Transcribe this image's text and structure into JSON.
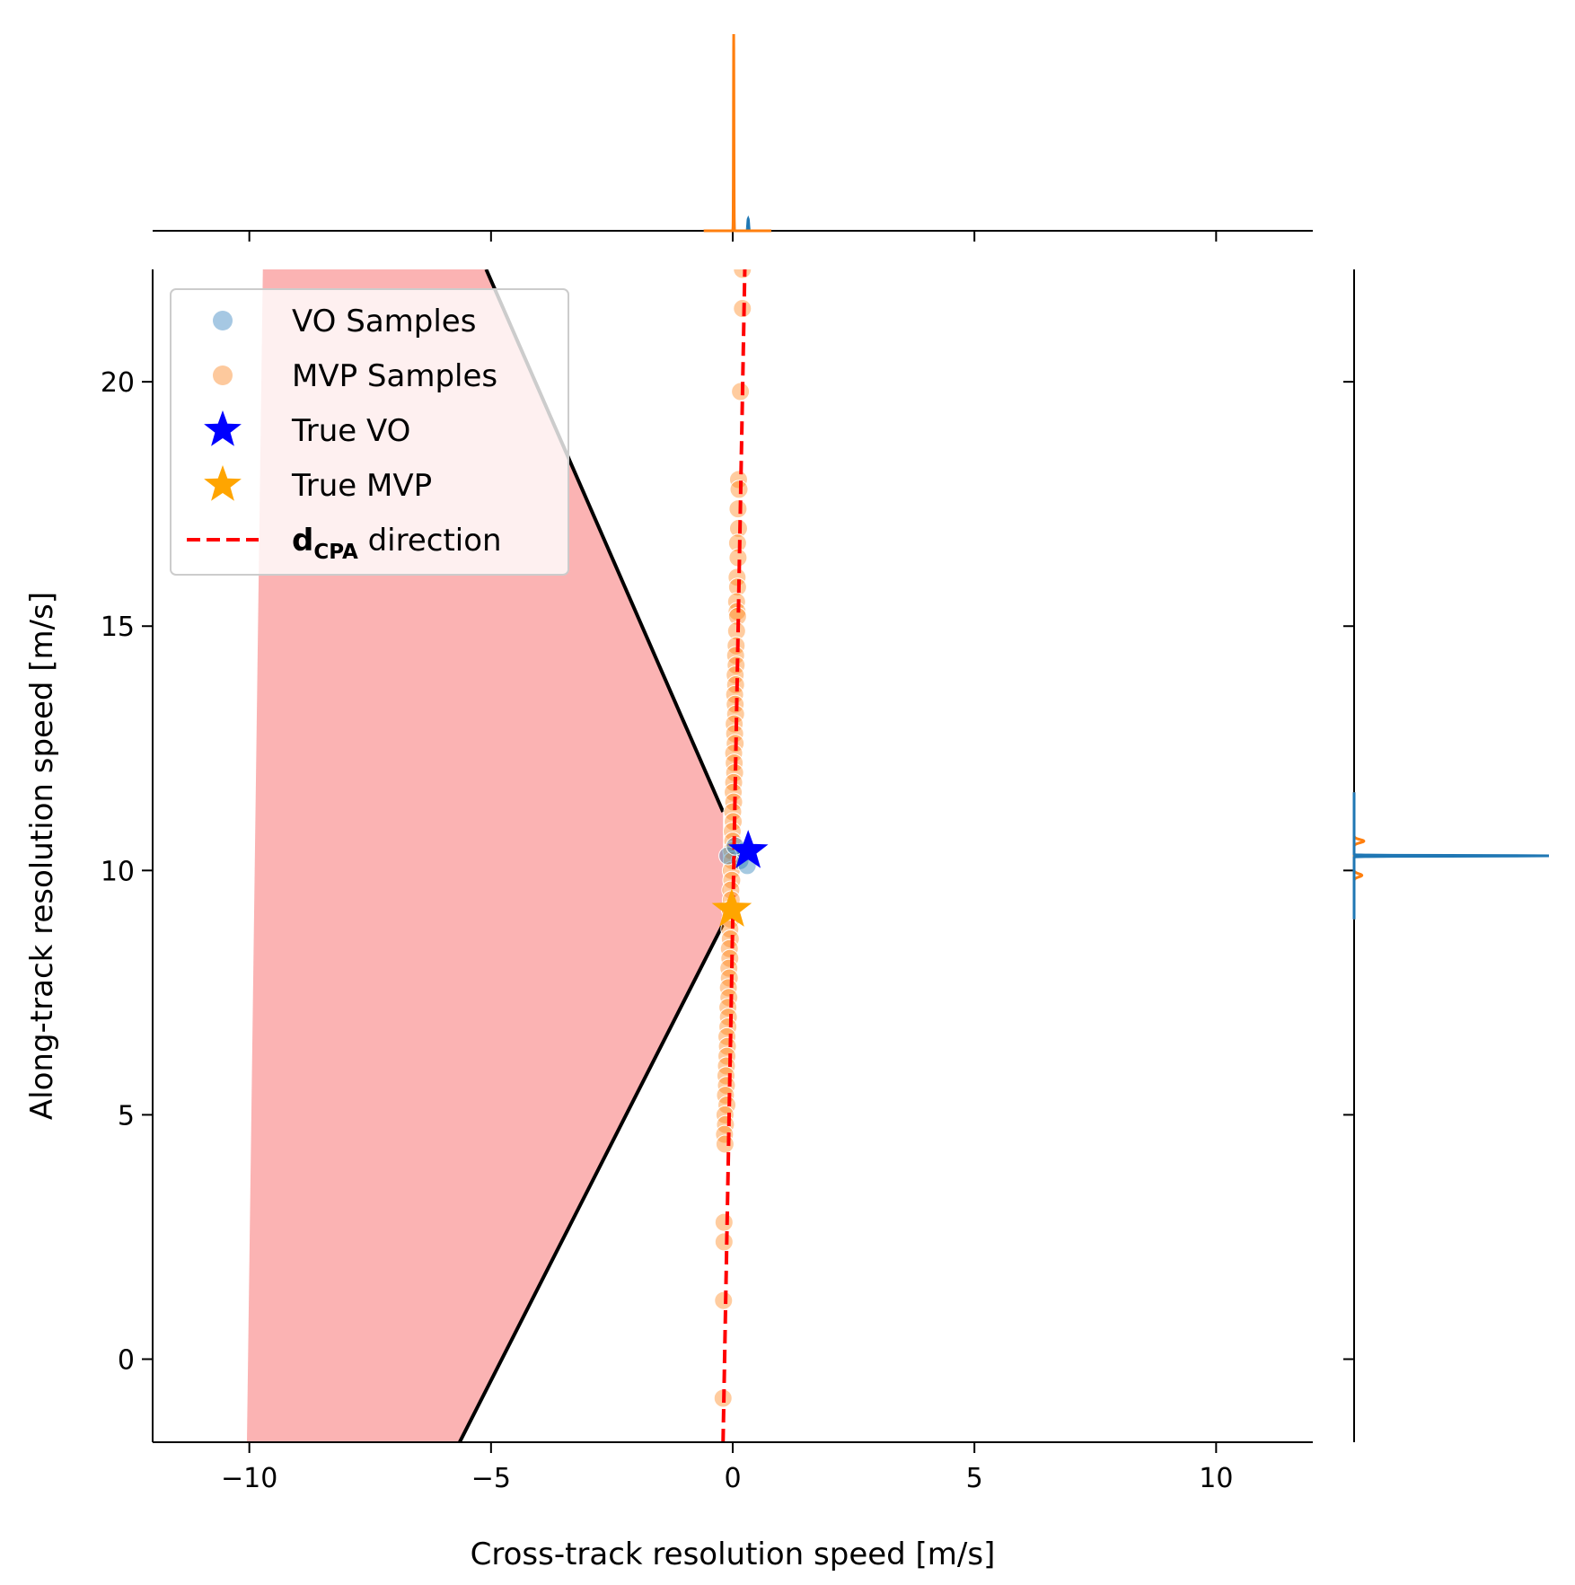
{
  "chart_data": {
    "type": "scatter",
    "xlabel": "Cross-track resolution speed [m/s]",
    "ylabel": "Along-track resolution speed [m/s]",
    "xlim": [
      -12,
      12
    ],
    "ylim": [
      -1.7,
      22.3
    ],
    "xticks": [
      -10,
      -5,
      0,
      5,
      10
    ],
    "yticks": [
      0,
      5,
      10,
      15,
      20
    ],
    "xtick_labels": [
      "−10",
      "−5",
      "0",
      "5",
      "10"
    ],
    "ytick_labels": [
      "0",
      "5",
      "10",
      "15",
      "20"
    ],
    "grid": false,
    "legend": {
      "placement": "top-left",
      "entries": [
        {
          "label": "VO Samples",
          "marker": "circle",
          "color": "#a6c8e3"
        },
        {
          "label": "MVP Samples",
          "marker": "circle",
          "color": "#fdc99d"
        },
        {
          "label": "True VO",
          "marker": "star",
          "color": "#0000ff"
        },
        {
          "label": "True MVP",
          "marker": "star",
          "color": "#ffa500"
        },
        {
          "label_bold": "d",
          "label_sub": "CPA",
          "label": " direction",
          "marker": "dashed-line",
          "color": "#ff0000"
        }
      ]
    },
    "velocity_obstacle_region": {
      "fill_color": "#fbb3b3",
      "edge_color": "#000000",
      "polygon": [
        [
          -10.05,
          -1.7
        ],
        [
          -9.72,
          22.3
        ],
        [
          -5.1,
          22.3
        ],
        [
          -0.2,
          11.2
        ],
        [
          -0.2,
          8.9
        ],
        [
          -5.65,
          -1.7
        ]
      ],
      "edges": [
        [
          [
            -5.1,
            22.3
          ],
          [
            -0.2,
            11.2
          ]
        ],
        [
          [
            -0.2,
            8.9
          ],
          [
            -5.65,
            -1.7
          ]
        ]
      ]
    },
    "dcpa_direction": {
      "color": "#ff0000",
      "style": "dashed",
      "from": [
        -0.2,
        -1.7
      ],
      "to": [
        0.25,
        22.3
      ]
    },
    "series": [
      {
        "name": "MVP Samples",
        "color": "#ff7f0e",
        "x": [
          0.2,
          0.2,
          0.16,
          0.12,
          0.13,
          0.11,
          0.12,
          0.1,
          0.11,
          0.09,
          0.1,
          0.08,
          0.09,
          0.1,
          0.08,
          0.07,
          0.06,
          0.07,
          0.05,
          0.06,
          0.04,
          0.05,
          0.06,
          0.03,
          0.04,
          0.05,
          0.02,
          0.03,
          0.04,
          0.02,
          0.01,
          0.02,
          0.0,
          0.01,
          -0.01,
          0.0,
          -0.02,
          -0.01,
          -0.03,
          -0.02,
          -0.04,
          -0.03,
          -0.05,
          -0.04,
          -0.06,
          -0.05,
          -0.07,
          -0.06,
          -0.08,
          -0.07,
          -0.09,
          -0.08,
          -0.1,
          -0.09,
          -0.1,
          -0.12,
          -0.11,
          -0.12,
          -0.13,
          -0.14,
          -0.13,
          -0.15,
          -0.12,
          -0.16,
          -0.15,
          -0.17,
          -0.16,
          -0.18,
          -0.18,
          -0.19,
          -0.2
        ],
        "y": [
          22.3,
          21.5,
          19.8,
          18.0,
          17.8,
          17.4,
          17.0,
          16.7,
          16.4,
          16.0,
          15.8,
          15.5,
          15.3,
          15.2,
          14.9,
          14.6,
          14.4,
          14.2,
          14.0,
          13.8,
          13.6,
          13.4,
          13.2,
          13.0,
          12.8,
          12.6,
          12.4,
          12.2,
          12.0,
          11.8,
          11.6,
          11.4,
          11.2,
          11.0,
          10.8,
          10.6,
          10.4,
          10.2,
          10.0,
          9.8,
          9.6,
          9.4,
          9.2,
          9.0,
          8.8,
          8.6,
          8.4,
          8.2,
          8.0,
          7.8,
          7.6,
          7.4,
          7.2,
          7.0,
          6.8,
          6.6,
          6.4,
          6.2,
          6.0,
          5.8,
          5.6,
          5.4,
          5.2,
          5.0,
          4.8,
          4.6,
          4.4,
          2.8,
          2.4,
          1.2,
          -0.8
        ]
      },
      {
        "name": "VO Samples",
        "color": "#1f77b4",
        "x": [
          0.15,
          0.25,
          -0.1,
          0.3,
          0.05
        ],
        "y": [
          10.2,
          10.4,
          10.3,
          10.1,
          10.5
        ]
      }
    ],
    "points": [
      {
        "name": "True VO",
        "x": 0.32,
        "y": 10.4,
        "color": "#0000ff",
        "marker": "star"
      },
      {
        "name": "True MVP",
        "x": -0.02,
        "y": 9.2,
        "color": "#ffa500",
        "marker": "star"
      }
    ],
    "marginal_top": {
      "description_free": true,
      "curves": [
        {
          "series": "MVP Samples",
          "color": "#ff7f0e",
          "peaks": [
            {
              "x": 0.02,
              "height": 1.0,
              "width": 0.03
            }
          ]
        },
        {
          "series": "VO Samples",
          "color": "#1f77b4",
          "peaks": [
            {
              "x": 0.02,
              "height": 0.23,
              "width": 0.03
            },
            {
              "x": 0.32,
              "height": 0.06,
              "width": 0.06
            }
          ]
        }
      ]
    },
    "marginal_right": {
      "curves": [
        {
          "series": "MVP Samples",
          "color": "#ff7f0e",
          "peaks": [
            {
              "y": 10.6,
              "height": 0.05,
              "width": 0.2
            },
            {
              "y": 9.9,
              "height": 0.04,
              "width": 0.2
            }
          ]
        },
        {
          "series": "VO Samples",
          "color": "#1f77b4",
          "peaks": [
            {
              "y": 10.3,
              "height": 1.0,
              "width": 0.04
            }
          ]
        }
      ]
    }
  }
}
